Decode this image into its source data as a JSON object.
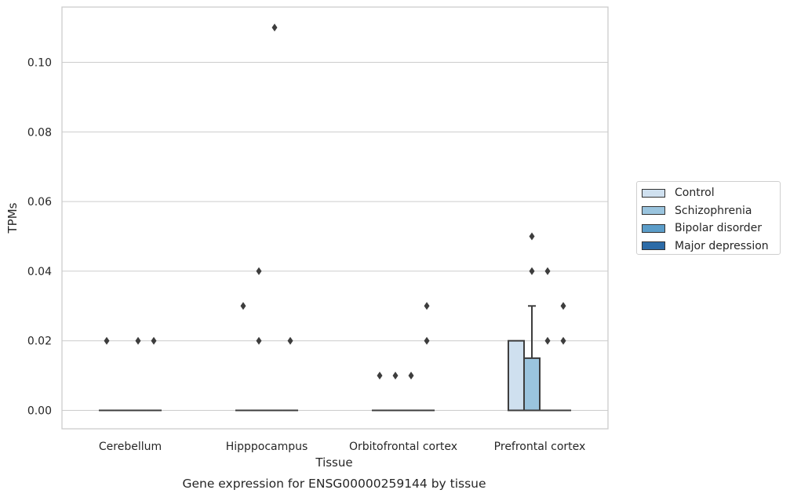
{
  "chart_data": {
    "type": "box",
    "title": "",
    "caption": "Gene expression for ENSG00000259144 by tissue",
    "xlabel": "Tissue",
    "ylabel": "TPMs",
    "ylim": [
      -0.0055,
      0.116
    ],
    "yticks": [
      "0.00",
      "0.02",
      "0.04",
      "0.06",
      "0.08",
      "0.10"
    ],
    "ytick_values": [
      0,
      0.02,
      0.04,
      0.06,
      0.08,
      0.1
    ],
    "grid": "horizontal",
    "legend_position": "outside right",
    "categories": [
      "Cerebellum",
      "Hipppocampus",
      "Orbitofrontal cortex",
      "Prefrontal cortex"
    ],
    "series": [
      {
        "name": "Control",
        "color": "#cfe0ef",
        "boxes": [
          {
            "q1": 0,
            "median": 0,
            "q3": 0,
            "whisker_low": 0,
            "whisker_high": 0,
            "outliers": [
              0.02
            ]
          },
          {
            "q1": 0,
            "median": 0,
            "q3": 0,
            "whisker_low": 0,
            "whisker_high": 0,
            "outliers": [
              0.03
            ]
          },
          {
            "q1": 0,
            "median": 0,
            "q3": 0,
            "whisker_low": 0,
            "whisker_high": 0,
            "outliers": [
              0.01
            ]
          },
          {
            "q1": 0,
            "median": 0,
            "q3": 0.02,
            "whisker_low": 0,
            "whisker_high": 0.02,
            "outliers": []
          }
        ]
      },
      {
        "name": "Schizophrenia",
        "color": "#9ac4de",
        "boxes": [
          {
            "q1": 0,
            "median": 0,
            "q3": 0,
            "whisker_low": 0,
            "whisker_high": 0,
            "outliers": []
          },
          {
            "q1": 0,
            "median": 0,
            "q3": 0,
            "whisker_low": 0,
            "whisker_high": 0,
            "outliers": [
              0.02,
              0.04
            ]
          },
          {
            "q1": 0,
            "median": 0,
            "q3": 0,
            "whisker_low": 0,
            "whisker_high": 0,
            "outliers": [
              0.01
            ]
          },
          {
            "q1": 0,
            "median": 0,
            "q3": 0.015,
            "whisker_low": 0,
            "whisker_high": 0.03,
            "outliers": [
              0.04,
              0.05
            ]
          }
        ]
      },
      {
        "name": "Bipolar disorder",
        "color": "#5b9dc9",
        "boxes": [
          {
            "q1": 0,
            "median": 0,
            "q3": 0,
            "whisker_low": 0,
            "whisker_high": 0,
            "outliers": [
              0.02
            ]
          },
          {
            "q1": 0,
            "median": 0,
            "q3": 0,
            "whisker_low": 0,
            "whisker_high": 0,
            "outliers": [
              0.11
            ]
          },
          {
            "q1": 0,
            "median": 0,
            "q3": 0,
            "whisker_low": 0,
            "whisker_high": 0,
            "outliers": [
              0.01
            ]
          },
          {
            "q1": 0,
            "median": 0,
            "q3": 0,
            "whisker_low": 0,
            "whisker_high": 0,
            "outliers": [
              0.02,
              0.04
            ]
          }
        ]
      },
      {
        "name": "Major depression",
        "color": "#2c6ba7",
        "boxes": [
          {
            "q1": 0,
            "median": 0,
            "q3": 0,
            "whisker_low": 0,
            "whisker_high": 0,
            "outliers": [
              0.02
            ]
          },
          {
            "q1": 0,
            "median": 0,
            "q3": 0,
            "whisker_low": 0,
            "whisker_high": 0,
            "outliers": [
              0.02
            ]
          },
          {
            "q1": 0,
            "median": 0,
            "q3": 0,
            "whisker_low": 0,
            "whisker_high": 0,
            "outliers": [
              0.02,
              0.03
            ]
          },
          {
            "q1": 0,
            "median": 0,
            "q3": 0,
            "whisker_low": 0,
            "whisker_high": 0,
            "outliers": [
              0.02,
              0.03
            ]
          }
        ]
      }
    ]
  }
}
